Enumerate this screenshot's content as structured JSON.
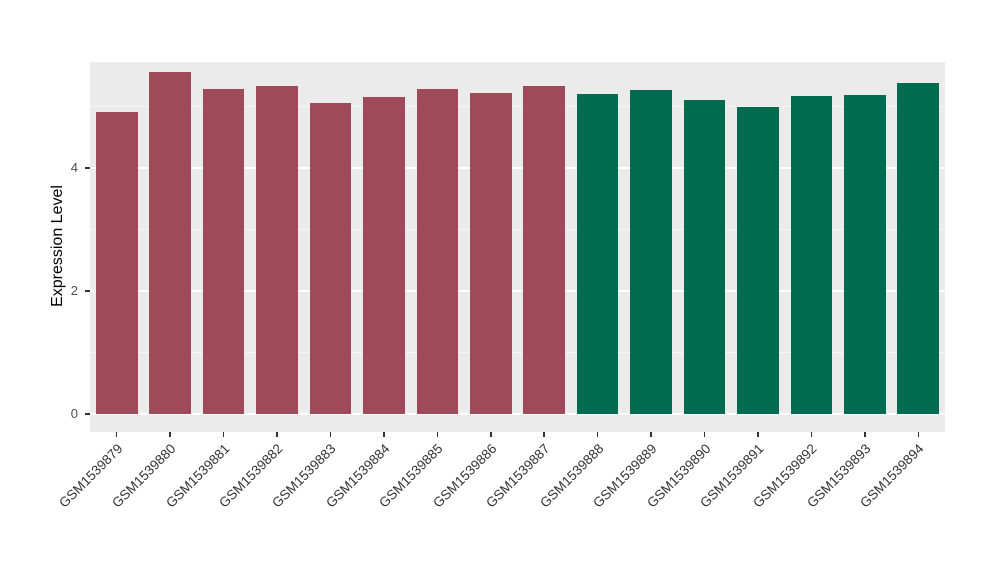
{
  "chart_data": {
    "type": "bar",
    "title": "",
    "xlabel": "",
    "ylabel": "Expression Level",
    "categories": [
      "GSM1539879",
      "GSM1539880",
      "GSM1539881",
      "GSM1539882",
      "GSM1539883",
      "GSM1539884",
      "GSM1539885",
      "GSM1539886",
      "GSM1539887",
      "GSM1539888",
      "GSM1539889",
      "GSM1539890",
      "GSM1539891",
      "GSM1539892",
      "GSM1539893",
      "GSM1539894"
    ],
    "values": [
      4.9,
      5.55,
      5.28,
      5.33,
      5.05,
      5.15,
      5.28,
      5.22,
      5.33,
      5.2,
      5.27,
      5.1,
      4.99,
      5.17,
      5.18,
      5.38
    ],
    "bar_groups": [
      "A",
      "A",
      "A",
      "A",
      "A",
      "A",
      "A",
      "A",
      "A",
      "B",
      "B",
      "B",
      "B",
      "B",
      "B",
      "B"
    ],
    "group_colors": {
      "A": "#9F4A58",
      "B": "#006B4F"
    },
    "ylim": [
      0,
      5.72
    ],
    "yticks": [
      0,
      2,
      4
    ],
    "yticks_minor": [
      1,
      3,
      5
    ],
    "grid": true,
    "legend": "none",
    "panel_background": "#EBEBEB",
    "grid_major_color": "#FFFFFF"
  }
}
